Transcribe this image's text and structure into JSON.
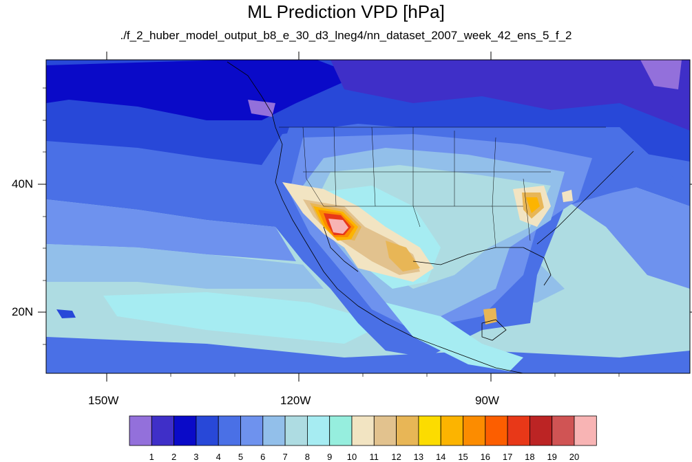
{
  "title": "ML Prediction VPD [hPa]",
  "subtitle": "./f_2_huber_model_output_b8_e_30_d3_lneg4/nn_dataset_2007_week_42_ens_5_f_2",
  "axes": {
    "lat_labels": [
      "40N",
      "20N"
    ],
    "lon_labels": [
      "150W",
      "120W",
      "90W"
    ]
  },
  "colorbar": {
    "labels": [
      "1",
      "2",
      "3",
      "4",
      "5",
      "6",
      "7",
      "8",
      "9",
      "10",
      "11",
      "12",
      "13",
      "14",
      "15",
      "16",
      "17",
      "18",
      "19",
      "20"
    ],
    "colors": [
      "#9370db",
      "#3f2fc8",
      "#0a0ac8",
      "#2848d8",
      "#4a70e6",
      "#6e92ee",
      "#92bfea",
      "#aedce2",
      "#a6ecf2",
      "#96eede",
      "#f2e4c2",
      "#e2c28e",
      "#e8b656",
      "#fcdc00",
      "#fcb400",
      "#fc8c00",
      "#fc5e00",
      "#e83818",
      "#bc2424",
      "#d05454",
      "#f8b4b4"
    ]
  },
  "colors": {
    "ocean_deep": "#2848d8",
    "ocean_mid": "#6e92ee",
    "ocean_light": "#aedce2",
    "land_dry": "#fc8c00",
    "hotspot": "#f8b4b4",
    "coastline": "#000000"
  }
}
